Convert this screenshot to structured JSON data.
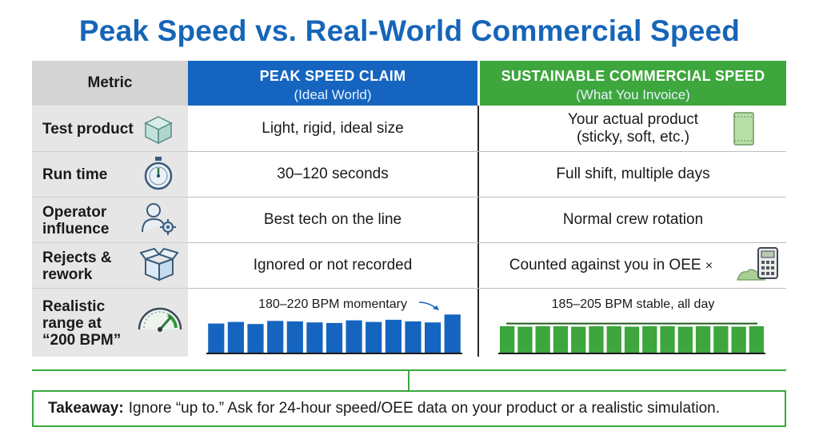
{
  "title": "Peak Speed vs. Real-World Commercial Speed",
  "headers": {
    "metric": "Metric",
    "peak_main": "PEAK SPEED CLAIM",
    "peak_sub": "(Ideal World)",
    "sust_main": "SUSTAINABLE COMMERCIAL SPEED",
    "sust_sub": "(What You Invoice)"
  },
  "rows": [
    {
      "metric": "Test product",
      "icon": "cube-icon",
      "peak": "Light, rigid, ideal size",
      "sust_line1": "Your actual product",
      "sust_line2": "(sticky, soft, etc.)",
      "sust_icon": "product-bag-icon"
    },
    {
      "metric": "Run time",
      "icon": "stopwatch-icon",
      "peak": "30–120 seconds",
      "sust": "Full shift, multiple days"
    },
    {
      "metric_line1": "Operator",
      "metric_line2": "influence",
      "icon": "operator-gear-icon",
      "peak": "Best tech on the line",
      "sust": "Normal crew rotation"
    },
    {
      "metric_line1": "Rejects &",
      "metric_line2": "rework",
      "icon": "open-box-icon",
      "peak": "Ignored or not recorded",
      "sust": "Counted against you in OEE",
      "sust_icon": "calculator-icon",
      "sust_mark": "×"
    },
    {
      "metric_line1": "Realistic",
      "metric_line2": "range at",
      "metric_line3": "“200 BPM”",
      "icon": "gauge-icon"
    }
  ],
  "chart_data": [
    {
      "type": "bar",
      "annotation": "180–220 BPM momentary",
      "values": [
        205,
        208,
        204,
        210,
        209,
        207,
        206,
        211,
        208,
        212,
        209,
        207,
        222
      ],
      "ylim": [
        150,
        230
      ],
      "color": "#1565c0"
    },
    {
      "type": "bar",
      "annotation": "185–205 BPM stable, all day",
      "values": [
        200,
        199,
        200,
        200,
        199,
        200,
        200,
        199,
        200,
        200,
        199,
        200,
        200,
        199,
        200
      ],
      "ylim": [
        150,
        230
      ],
      "color": "#3da63d",
      "reference_line": 205
    }
  ],
  "takeaway": {
    "label": "Takeaway:",
    "text": "Ignore “up to.” Ask for 24-hour speed/OEE data on your product  or a realistic simulation."
  }
}
